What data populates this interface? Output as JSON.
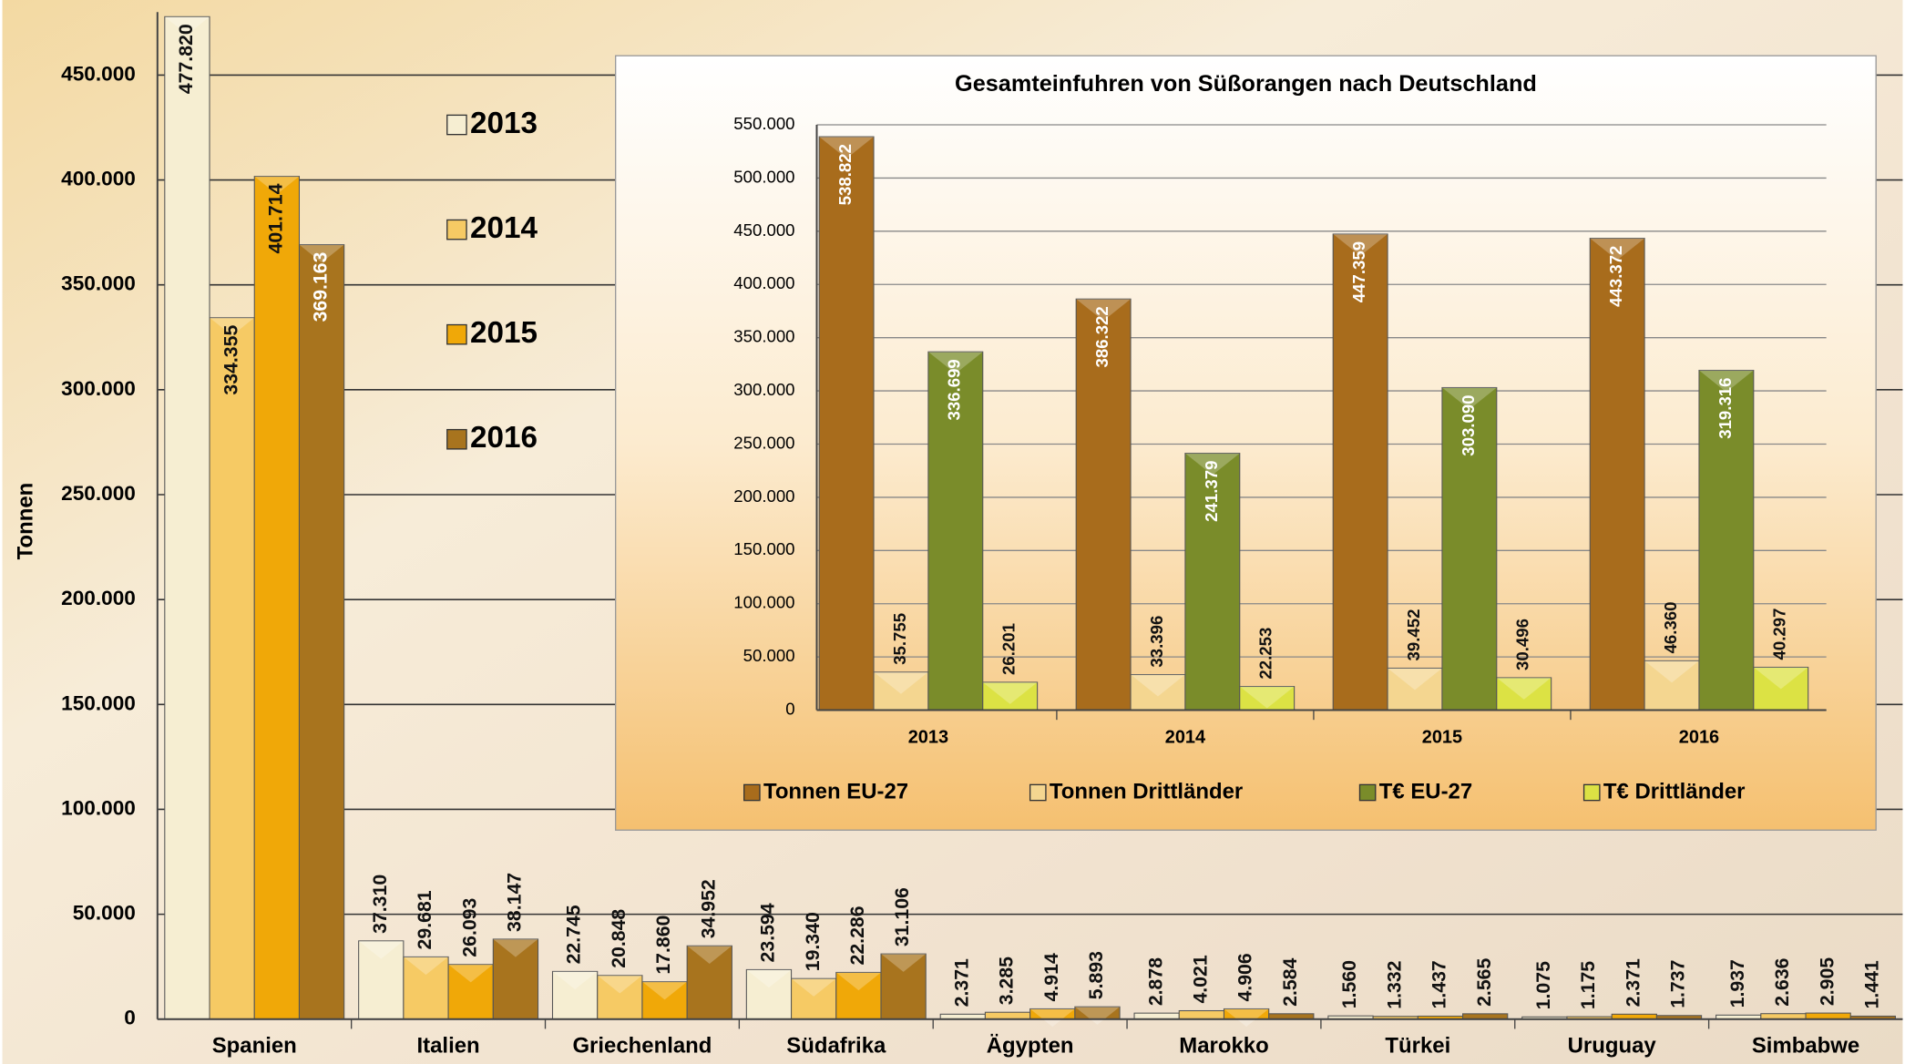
{
  "chart_data": [
    {
      "type": "bar",
      "y_label": "Tonnen",
      "categories": [
        "Spanien",
        "Italien",
        "Griechenland",
        "Südafrika",
        "Ägypten",
        "Marokko",
        "Türkei",
        "Uruguay",
        "Simbabwe"
      ],
      "series": [
        {
          "name": "2013",
          "color": "#f6eed2",
          "values": [
            477820,
            37310,
            22745,
            23594,
            2371,
            2878,
            1560,
            1075,
            1937
          ],
          "value_labels": [
            "477.820",
            "37.310",
            "22.745",
            "23.594",
            "2.371",
            "2.878",
            "1.560",
            "1.075",
            "1.937"
          ]
        },
        {
          "name": "2014",
          "color": "#f6ca64",
          "values": [
            334355,
            29681,
            20848,
            19340,
            3285,
            4021,
            1332,
            1175,
            2636
          ],
          "value_labels": [
            "334.355",
            "29.681",
            "20.848",
            "19.340",
            "3.285",
            "4.021",
            "1.332",
            "1.175",
            "2.636"
          ]
        },
        {
          "name": "2015",
          "color": "#f0a808",
          "values": [
            401714,
            26093,
            17860,
            22286,
            4914,
            4906,
            1437,
            2371,
            2905
          ],
          "value_labels": [
            "401.714",
            "26.093",
            "17.860",
            "22.286",
            "4.914",
            "4.906",
            "1.437",
            "2.371",
            "2.905"
          ]
        },
        {
          "name": "2016",
          "color": "#a8741e",
          "values": [
            369163,
            38147,
            34952,
            31106,
            5893,
            2584,
            2565,
            1737,
            1441
          ],
          "value_labels": [
            "369.163",
            "38.147",
            "34.952",
            "31.106",
            "5.893",
            "2.584",
            "2.565",
            "1.737",
            "1.441"
          ]
        }
      ],
      "ylim": [
        0,
        480000
      ],
      "yticks": [
        0,
        {
          "value": 50000,
          "label": "50.000"
        },
        {
          "value": 100000,
          "label": "100.000"
        },
        {
          "value": 150000,
          "label": "150.000"
        },
        {
          "value": 200000,
          "label": "200.000"
        },
        {
          "value": 250000,
          "label": "250.000"
        },
        {
          "value": 300000,
          "label": "300.000"
        },
        {
          "value": 350000,
          "label": "350.000"
        },
        {
          "value": 400000,
          "label": "400.000"
        },
        {
          "value": 450000,
          "label": "450.000"
        }
      ],
      "grid": true
    },
    {
      "type": "bar",
      "title": "Gesamteinfuhren von Süßorangen nach Deutschland",
      "categories": [
        "2013",
        "2014",
        "2015",
        "2016"
      ],
      "series": [
        {
          "name": "Tonnen EU-27",
          "color": "#a86c1c",
          "values": [
            538822,
            386322,
            447359,
            443372
          ],
          "value_labels": [
            "538.822",
            "386.322",
            "447.359",
            "443.372"
          ]
        },
        {
          "name": "Tonnen Drittländer",
          "color": "#f4d690",
          "values": [
            35755,
            33396,
            39452,
            46360
          ],
          "value_labels": [
            "35.755",
            "33.396",
            "39.452",
            "46.360"
          ]
        },
        {
          "name": "T€ EU-27",
          "color": "#7a8c2a",
          "values": [
            336699,
            241379,
            303090,
            319316
          ],
          "value_labels": [
            "336.699",
            "241.379",
            "303.090",
            "319.316"
          ]
        },
        {
          "name": "T€ Drittländer",
          "color": "#dce244",
          "values": [
            26201,
            22253,
            30496,
            40297
          ],
          "value_labels": [
            "26.201",
            "22.253",
            "30.496",
            "40.297"
          ]
        }
      ],
      "ylim": [
        0,
        550000
      ],
      "yticks": [
        0,
        {
          "value": 50000,
          "label": "50.000"
        },
        {
          "value": 100000,
          "label": "100.000"
        },
        {
          "value": 150000,
          "label": "150.000"
        },
        {
          "value": 200000,
          "label": "200.000"
        },
        {
          "value": 250000,
          "label": "250.000"
        },
        {
          "value": 300000,
          "label": "300.000"
        },
        {
          "value": 350000,
          "label": "350.000"
        },
        {
          "value": 400000,
          "label": "400.000"
        },
        {
          "value": 450000,
          "label": "450.000"
        },
        {
          "value": 500000,
          "label": "500.000"
        },
        {
          "value": 550000,
          "label": "550.000"
        }
      ],
      "grid": true
    }
  ]
}
